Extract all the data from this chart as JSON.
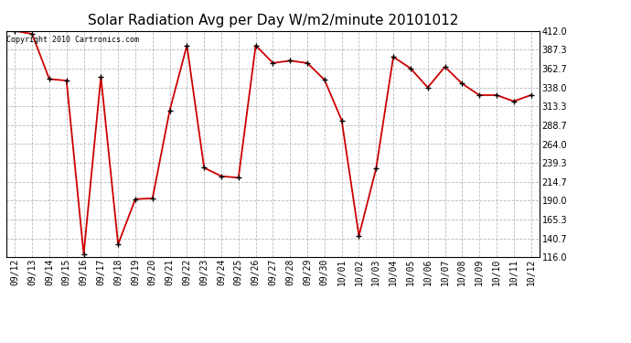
{
  "title": "Solar Radiation Avg per Day W/m2/minute 20101012",
  "copyright": "Copyright 2010 Cartronics.com",
  "labels": [
    "09/12",
    "09/13",
    "09/14",
    "09/15",
    "09/16",
    "09/17",
    "09/18",
    "09/19",
    "09/20",
    "09/21",
    "09/22",
    "09/23",
    "09/24",
    "09/25",
    "09/26",
    "09/27",
    "09/28",
    "09/29",
    "09/30",
    "10/01",
    "10/02",
    "10/03",
    "10/04",
    "10/05",
    "10/06",
    "10/07",
    "10/08",
    "10/09",
    "10/10",
    "10/11",
    "10/12"
  ],
  "values": [
    412.0,
    408.0,
    349.0,
    347.0,
    120.0,
    352.0,
    133.0,
    192.0,
    193.0,
    308.0,
    393.0,
    233.0,
    222.0,
    220.0,
    393.0,
    370.0,
    373.0,
    370.0,
    348.0,
    295.0,
    144.0,
    232.0,
    378.0,
    363.0,
    338.0,
    365.0,
    343.0,
    328.0,
    328.0,
    320.0,
    328.0
  ],
  "ylim_min": 116.0,
  "ylim_max": 412.0,
  "yticks": [
    116.0,
    140.7,
    165.3,
    190.0,
    214.7,
    239.3,
    264.0,
    288.7,
    313.3,
    338.0,
    362.7,
    387.3,
    412.0
  ],
  "line_color": "#cc0000",
  "marker_color": "#000000",
  "background_color": "#ffffff",
  "grid_color": "#aaaaaa",
  "title_fontsize": 11,
  "tick_fontsize": 7,
  "copyright_fontsize": 6
}
